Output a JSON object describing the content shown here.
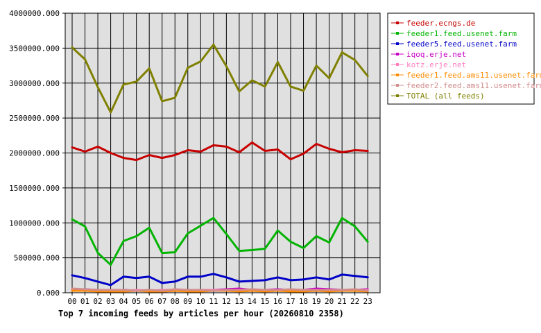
{
  "chart_data": {
    "type": "line",
    "title": "Top 7 incoming feeds by articles per hour (20260810 2358)",
    "xlabel": "",
    "ylabel": "",
    "ylim": [
      0,
      4000000
    ],
    "yticks": [
      "0.000",
      "500000.000",
      "1000000.000",
      "1500000.000",
      "2000000.000",
      "2500000.000",
      "3000000.000",
      "3500000.000",
      "4000000.000"
    ],
    "categories": [
      "00",
      "01",
      "02",
      "03",
      "04",
      "05",
      "06",
      "07",
      "08",
      "09",
      "10",
      "11",
      "12",
      "13",
      "14",
      "15",
      "16",
      "17",
      "18",
      "19",
      "20",
      "21",
      "22",
      "23"
    ],
    "grid": true,
    "legend_position": "right",
    "series": [
      {
        "name": "feeder.ecngs.de",
        "color": "#c80000",
        "values": [
          2080000,
          2020000,
          2090000,
          2000000,
          1930000,
          1900000,
          1970000,
          1930000,
          1970000,
          2040000,
          2020000,
          2110000,
          2090000,
          2010000,
          2150000,
          2030000,
          2050000,
          1910000,
          1990000,
          2130000,
          2060000,
          2010000,
          2040000,
          2030000
        ]
      },
      {
        "name": "feeder1.feed.usenet.farm",
        "color": "#00b400",
        "values": [
          1050000,
          950000,
          570000,
          400000,
          740000,
          810000,
          930000,
          570000,
          580000,
          850000,
          960000,
          1070000,
          840000,
          600000,
          610000,
          630000,
          890000,
          730000,
          640000,
          810000,
          720000,
          1070000,
          950000,
          730000
        ]
      },
      {
        "name": "feeder5.feed.usenet.farm",
        "color": "#0000c8",
        "values": [
          250000,
          210000,
          160000,
          110000,
          230000,
          210000,
          230000,
          140000,
          160000,
          230000,
          230000,
          270000,
          220000,
          160000,
          170000,
          180000,
          220000,
          180000,
          190000,
          220000,
          190000,
          260000,
          240000,
          220000
        ]
      },
      {
        "name": "iqoq.erje.net",
        "color": "#c800c8",
        "values": [
          40000,
          50000,
          40000,
          30000,
          40000,
          30000,
          30000,
          20000,
          30000,
          40000,
          40000,
          40000,
          50000,
          60000,
          40000,
          40000,
          50000,
          40000,
          40000,
          60000,
          50000,
          40000,
          40000,
          50000
        ]
      },
      {
        "name": "kotz.erje.net",
        "color": "#ff7fbf",
        "values": [
          50000,
          40000,
          30000,
          40000,
          30000,
          40000,
          30000,
          40000,
          40000,
          30000,
          40000,
          40000,
          40000,
          30000,
          40000,
          40000,
          30000,
          40000,
          40000,
          40000,
          40000,
          40000,
          30000,
          40000
        ]
      },
      {
        "name": "feeder1.feed.ams11.usenet.farm",
        "color": "#ff8c00",
        "values": [
          30000,
          30000,
          20000,
          20000,
          20000,
          30000,
          20000,
          20000,
          30000,
          20000,
          20000,
          30000,
          30000,
          20000,
          30000,
          20000,
          30000,
          20000,
          20000,
          30000,
          20000,
          30000,
          30000,
          20000
        ]
      },
      {
        "name": "feeder2.feed.ams11.usenet.farm",
        "color": "#d28c8c",
        "values": [
          60000,
          50000,
          40000,
          40000,
          40000,
          30000,
          40000,
          30000,
          50000,
          40000,
          40000,
          30000,
          40000,
          40000,
          50000,
          40000,
          40000,
          50000,
          40000,
          40000,
          40000,
          40000,
          50000,
          30000
        ]
      },
      {
        "name": "TOTAL (all feeds)",
        "color": "#808000",
        "values": [
          3510000,
          3340000,
          2940000,
          2580000,
          2980000,
          3020000,
          3210000,
          2740000,
          2790000,
          3220000,
          3310000,
          3550000,
          3240000,
          2880000,
          3040000,
          2950000,
          3300000,
          2950000,
          2890000,
          3250000,
          3070000,
          3440000,
          3330000,
          3100000
        ]
      }
    ]
  }
}
